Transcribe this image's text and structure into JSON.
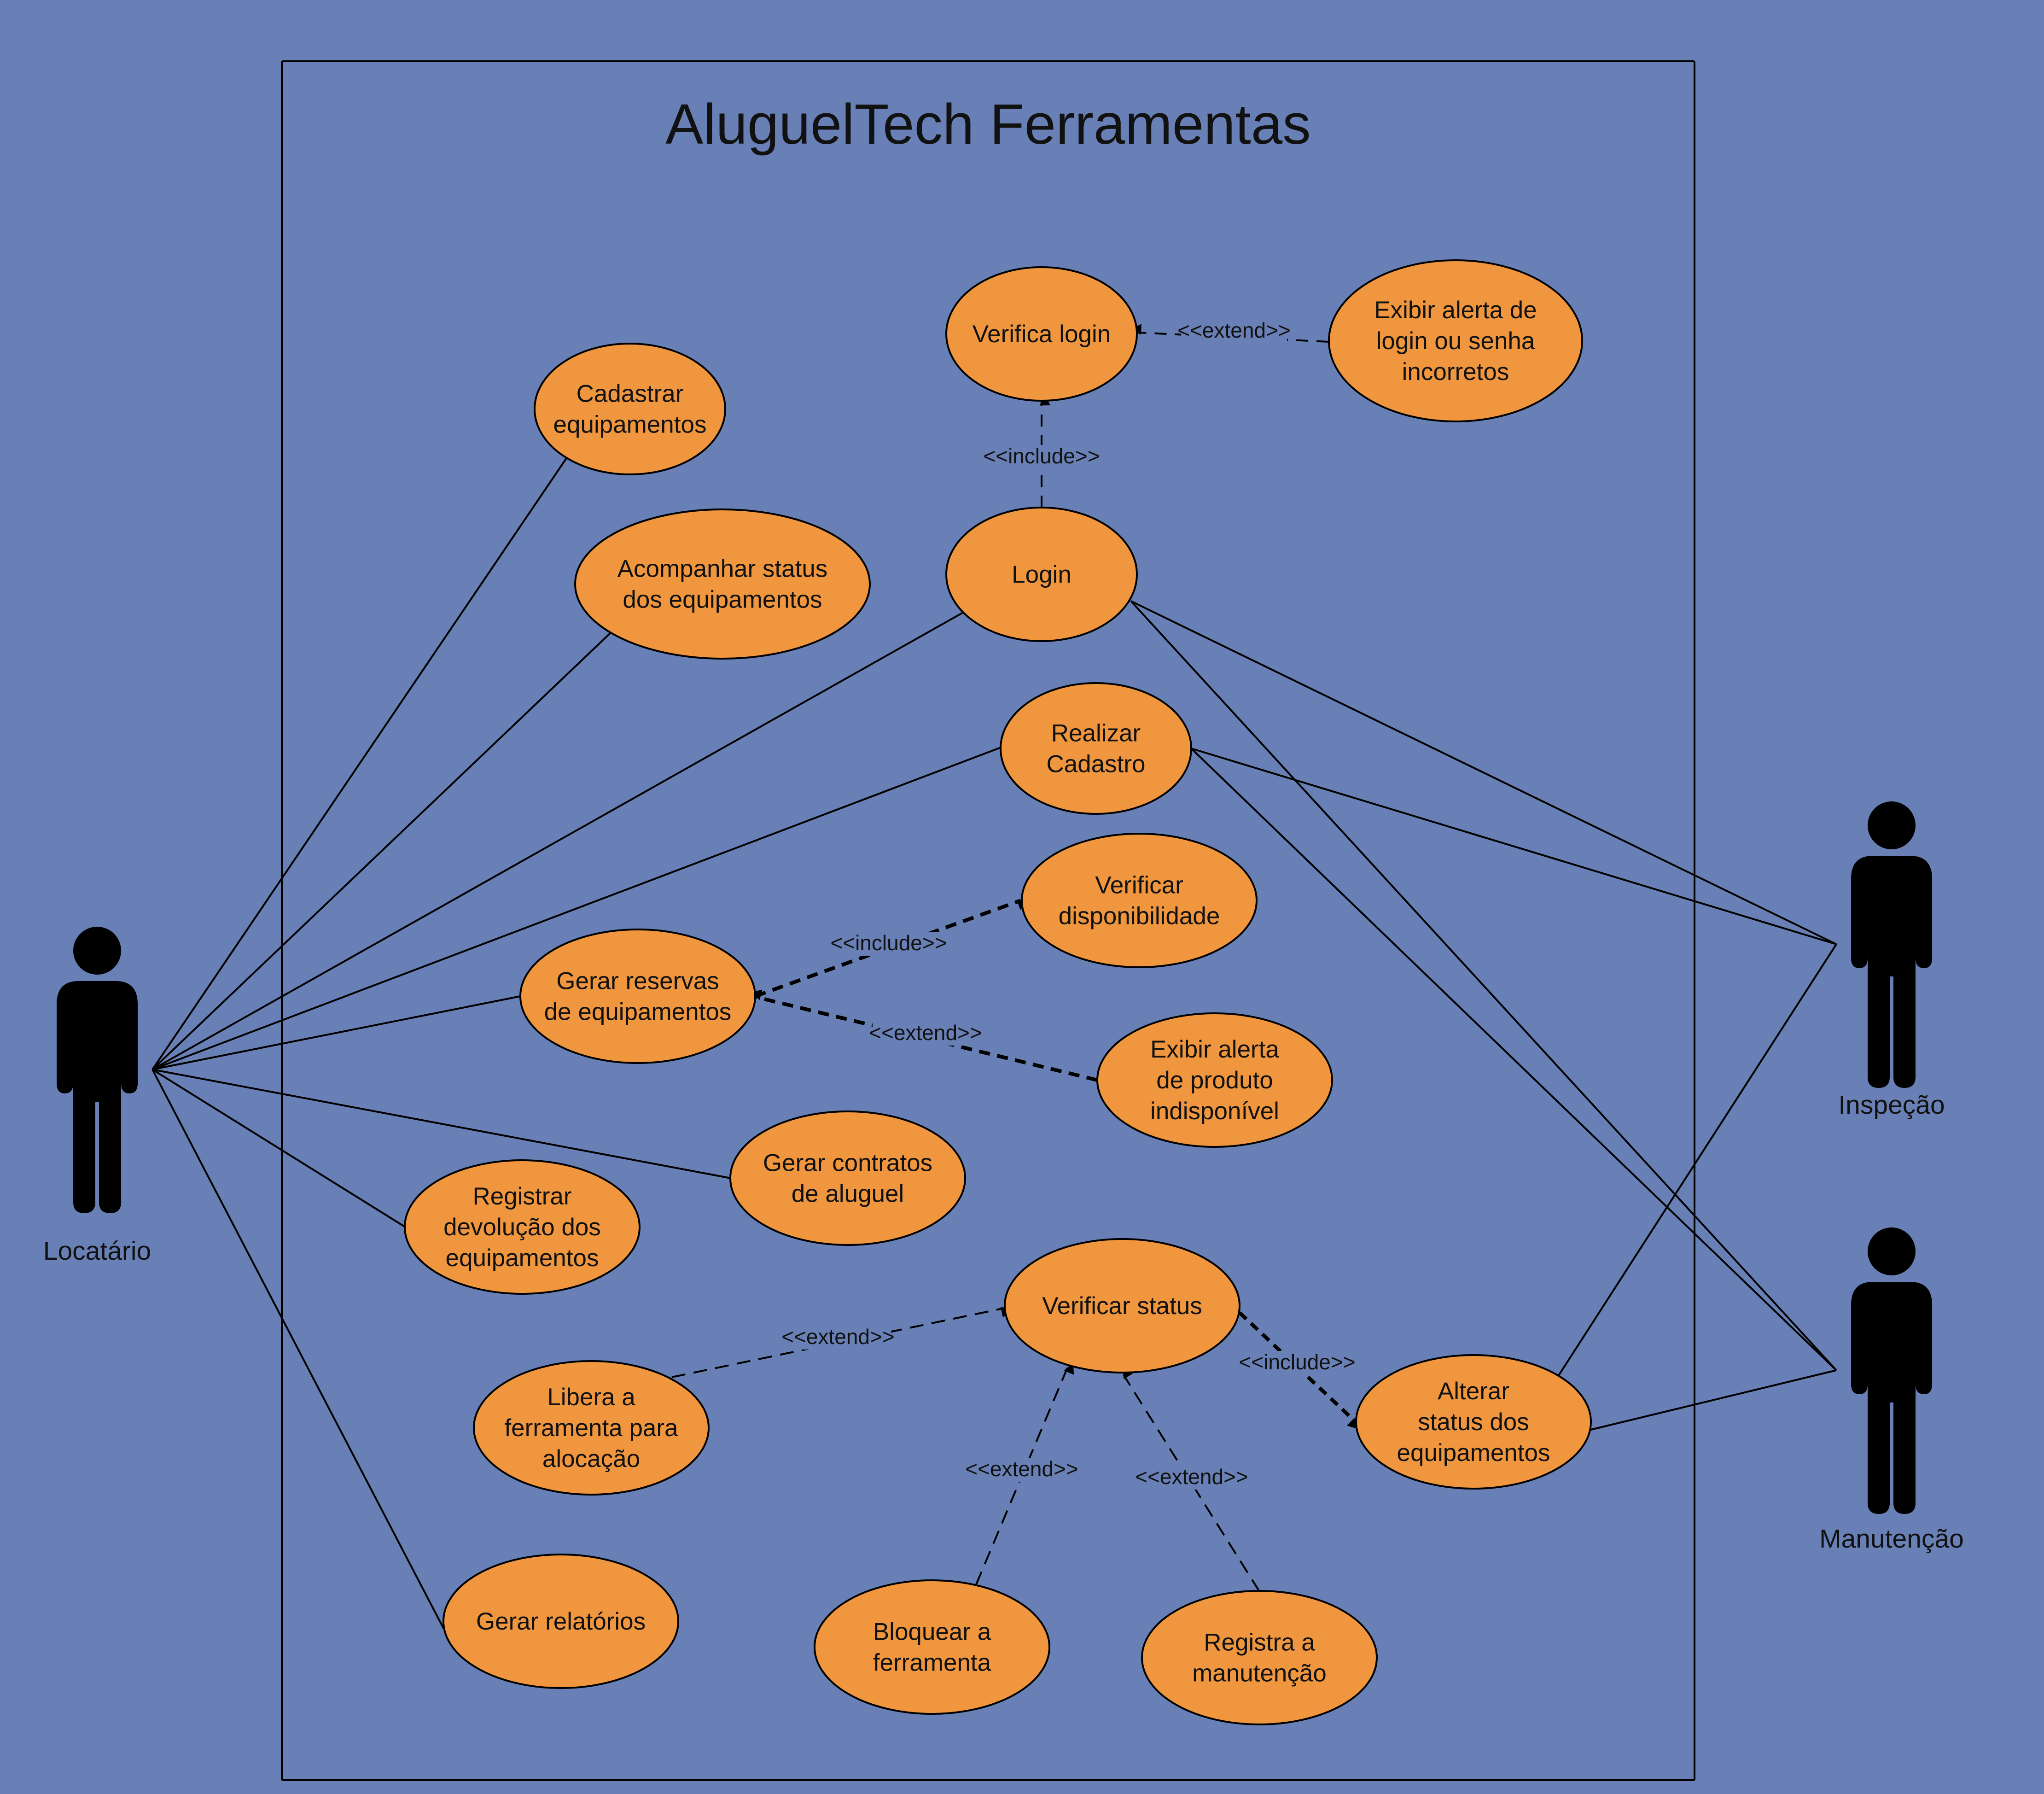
{
  "title": "AluguelTech Ferramentas",
  "colors": {
    "background": "#6880b5",
    "use_case_fill": "#f0963f",
    "line": "#000000"
  },
  "actors": [
    {
      "id": "locatario",
      "label": "Locatário"
    },
    {
      "id": "inspecao",
      "label": "Inspeção"
    },
    {
      "id": "manutencao",
      "label": "Manutenção"
    }
  ],
  "use_cases": [
    {
      "id": "verifica_login",
      "lines": [
        "Verifica login"
      ]
    },
    {
      "id": "exibir_alerta_login",
      "lines": [
        "Exibir alerta de",
        "login ou senha",
        "incorretos"
      ]
    },
    {
      "id": "cadastrar_equip",
      "lines": [
        "Cadastrar",
        "equipamentos"
      ]
    },
    {
      "id": "acompanhar_status",
      "lines": [
        "Acompanhar status",
        "dos equipamentos"
      ]
    },
    {
      "id": "login",
      "lines": [
        "Login"
      ]
    },
    {
      "id": "realizar_cadastro",
      "lines": [
        "Realizar",
        "Cadastro"
      ]
    },
    {
      "id": "verificar_disp",
      "lines": [
        "Verificar",
        "disponibilidade"
      ]
    },
    {
      "id": "gerar_reservas",
      "lines": [
        "Gerar reservas",
        "de equipamentos"
      ]
    },
    {
      "id": "exibir_alerta_produto",
      "lines": [
        "Exibir alerta",
        "de produto",
        "indisponível"
      ]
    },
    {
      "id": "gerar_contratos",
      "lines": [
        "Gerar contratos",
        "de aluguel"
      ]
    },
    {
      "id": "registrar_devolucao",
      "lines": [
        "Registrar",
        "devolução dos",
        "equipamentos"
      ]
    },
    {
      "id": "verificar_status",
      "lines": [
        "Verificar status"
      ]
    },
    {
      "id": "libera_ferramenta",
      "lines": [
        "Libera a",
        "ferramenta para",
        "alocação"
      ]
    },
    {
      "id": "alterar_status",
      "lines": [
        "Alterar",
        "status dos",
        "equipamentos"
      ]
    },
    {
      "id": "gerar_relatorios",
      "lines": [
        "Gerar relatórios"
      ]
    },
    {
      "id": "bloquear_ferramenta",
      "lines": [
        "Bloquear a",
        "ferramenta"
      ]
    },
    {
      "id": "registra_manutencao",
      "lines": [
        "Registra a",
        "manutenção"
      ]
    }
  ],
  "associations": [
    {
      "actor": "locatario",
      "use_case": "cadastrar_equip"
    },
    {
      "actor": "locatario",
      "use_case": "acompanhar_status"
    },
    {
      "actor": "locatario",
      "use_case": "login"
    },
    {
      "actor": "locatario",
      "use_case": "realizar_cadastro"
    },
    {
      "actor": "locatario",
      "use_case": "gerar_reservas"
    },
    {
      "actor": "locatario",
      "use_case": "gerar_contratos"
    },
    {
      "actor": "locatario",
      "use_case": "registrar_devolucao"
    },
    {
      "actor": "locatario",
      "use_case": "gerar_relatorios"
    },
    {
      "actor": "inspecao",
      "use_case": "login"
    },
    {
      "actor": "inspecao",
      "use_case": "realizar_cadastro"
    },
    {
      "actor": "inspecao",
      "use_case": "alterar_status"
    },
    {
      "actor": "manutencao",
      "use_case": "login"
    },
    {
      "actor": "manutencao",
      "use_case": "realizar_cadastro"
    },
    {
      "actor": "manutencao",
      "use_case": "alterar_status"
    }
  ],
  "relations": [
    {
      "from": "login",
      "to": "verifica_login",
      "label": "<<include>>"
    },
    {
      "from": "exibir_alerta_login",
      "to": "verifica_login",
      "label": "<<extend>>"
    },
    {
      "from": "gerar_reservas",
      "to": "verificar_disp",
      "label": "<<include>>"
    },
    {
      "from": "exibir_alerta_produto",
      "to": "gerar_reservas",
      "label": "<<extend>>"
    },
    {
      "from": "libera_ferramenta",
      "to": "verificar_status",
      "label": "<<extend>>"
    },
    {
      "from": "verificar_status",
      "to": "alterar_status",
      "label": "<<include>>"
    },
    {
      "from": "bloquear_ferramenta",
      "to": "verificar_status",
      "label": "<<extend>>"
    },
    {
      "from": "registra_manutencao",
      "to": "verificar_status",
      "label": "<<extend>>"
    }
  ]
}
